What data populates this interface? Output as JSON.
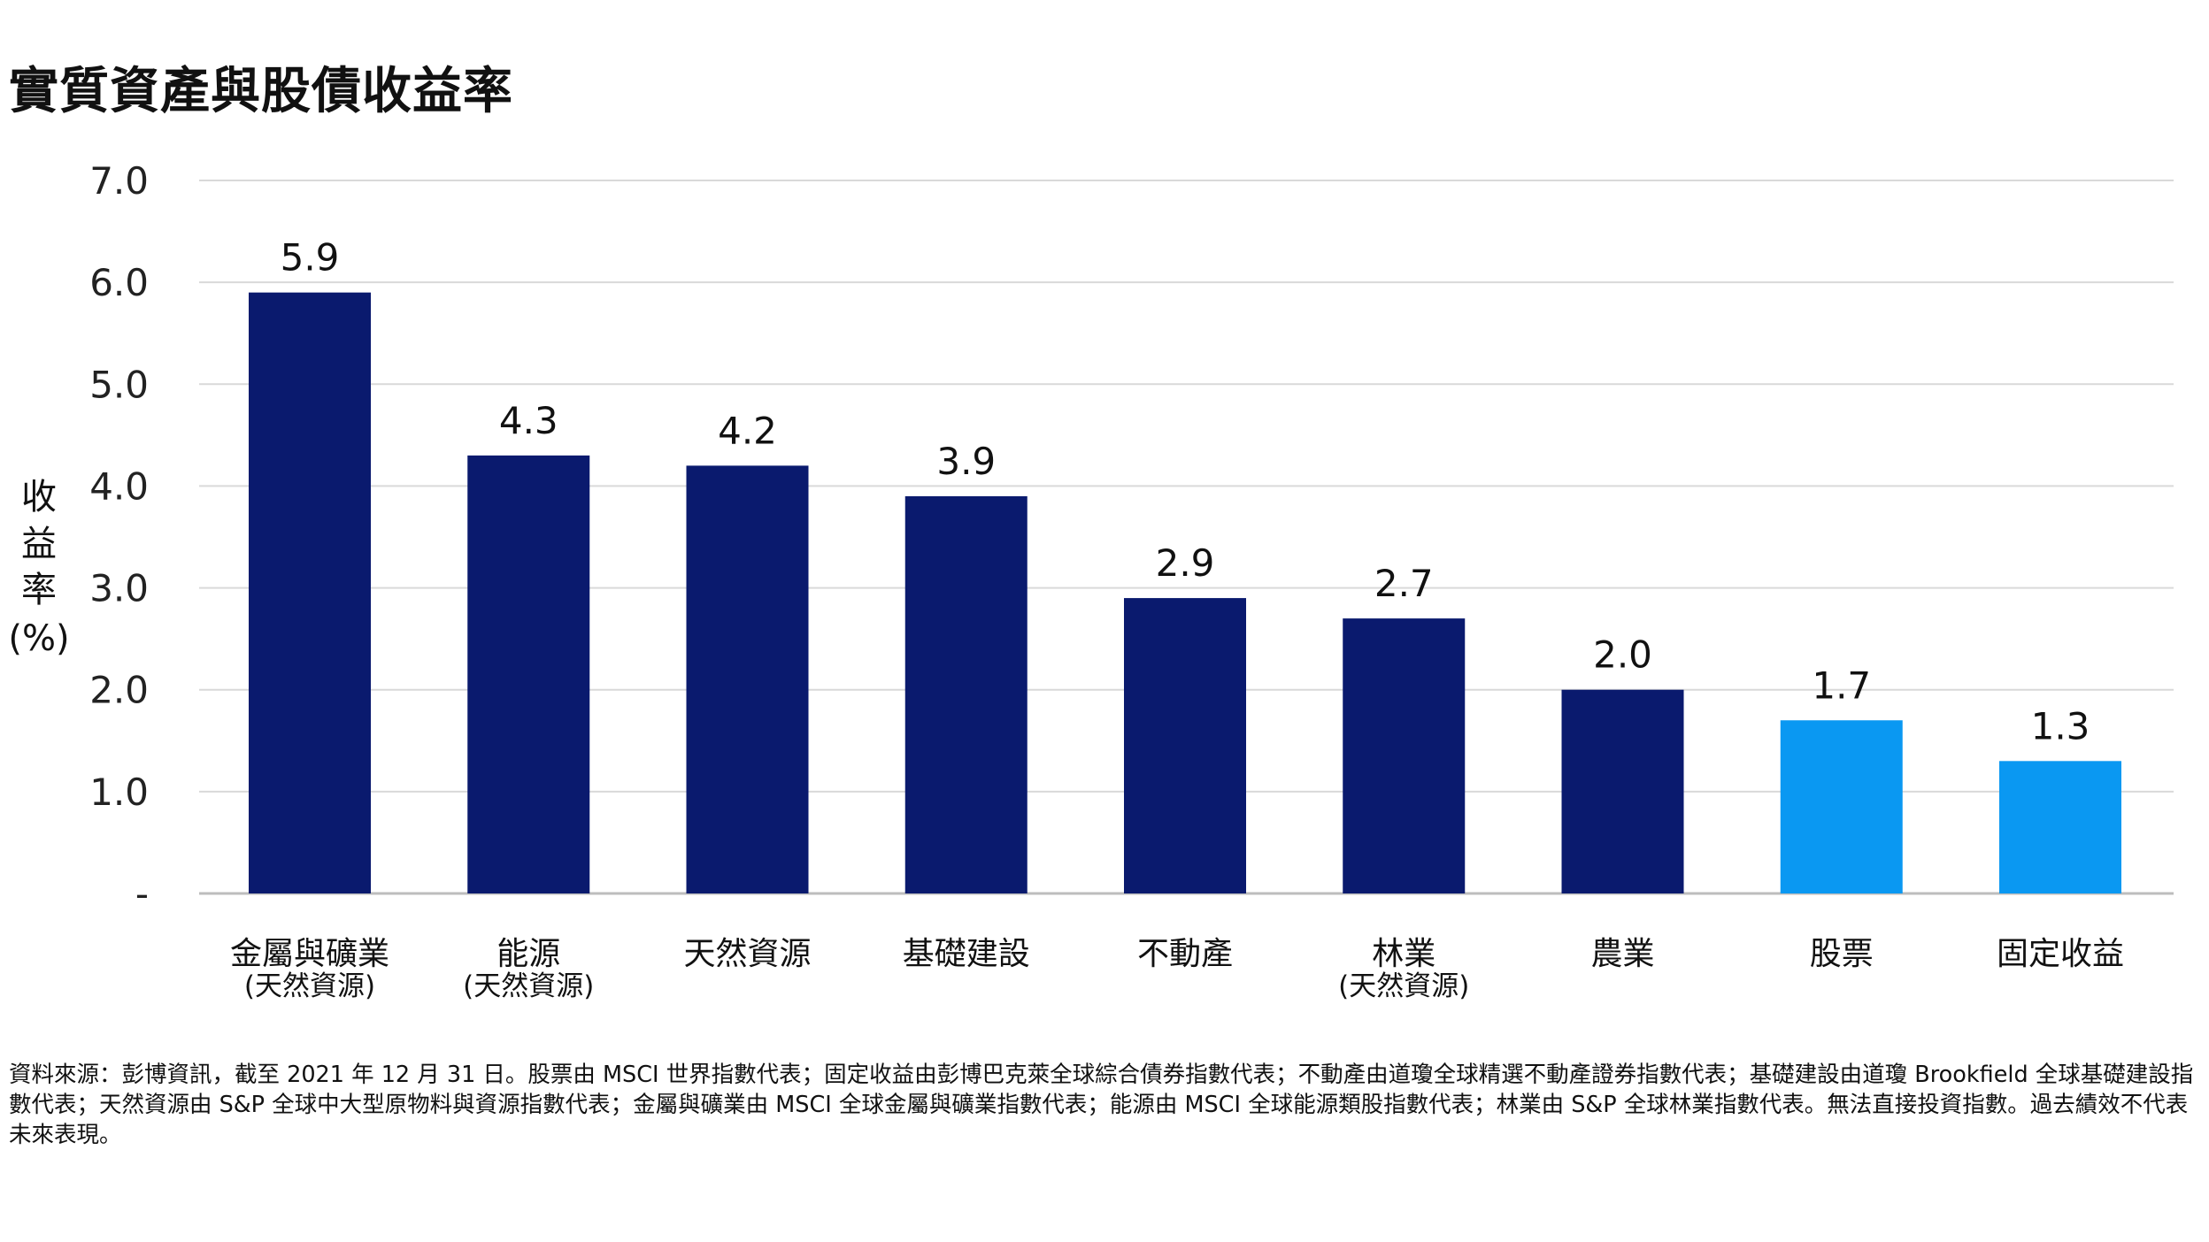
{
  "chart_data": {
    "type": "bar",
    "title": "實質資產與股債收益率",
    "ylabel_chars": [
      "收",
      "益",
      "率",
      "(%)"
    ],
    "ylim": [
      0,
      7
    ],
    "y_ticks": [
      {
        "value": 0,
        "label": "-"
      },
      {
        "value": 1,
        "label": "1.0"
      },
      {
        "value": 2,
        "label": "2.0"
      },
      {
        "value": 3,
        "label": "3.0"
      },
      {
        "value": 4,
        "label": "4.0"
      },
      {
        "value": 5,
        "label": "5.0"
      },
      {
        "value": 6,
        "label": "6.0"
      },
      {
        "value": 7,
        "label": "7.0"
      }
    ],
    "grid": true,
    "categories": [
      {
        "label": "金屬與礦業",
        "sublabel": "(天然資源)",
        "value": 5.9,
        "value_label": "5.9",
        "color": "#0a1a6e"
      },
      {
        "label": "能源",
        "sublabel": "(天然資源)",
        "value": 4.3,
        "value_label": "4.3",
        "color": "#0a1a6e"
      },
      {
        "label": "天然資源",
        "sublabel": "",
        "value": 4.2,
        "value_label": "4.2",
        "color": "#0a1a6e"
      },
      {
        "label": "基礎建設",
        "sublabel": "",
        "value": 3.9,
        "value_label": "3.9",
        "color": "#0a1a6e"
      },
      {
        "label": "不動產",
        "sublabel": "",
        "value": 2.9,
        "value_label": "2.9",
        "color": "#0a1a6e"
      },
      {
        "label": "林業",
        "sublabel": "(天然資源)",
        "value": 2.7,
        "value_label": "2.7",
        "color": "#0a1a6e"
      },
      {
        "label": "農業",
        "sublabel": "",
        "value": 2.0,
        "value_label": "2.0",
        "color": "#0a1a6e"
      },
      {
        "label": "股票",
        "sublabel": "",
        "value": 1.7,
        "value_label": "1.7",
        "color": "#0a98f2"
      },
      {
        "label": "固定收益",
        "sublabel": "",
        "value": 1.3,
        "value_label": "1.3",
        "color": "#0a98f2"
      }
    ],
    "source_note": "資料來源：彭博資訊，截至 2021 年 12 月 31 日。股票由 MSCI 世界指數代表；固定收益由彭博巴克萊全球綜合債券指數代表；不動產由道瓊全球精選不動產證券指數代表；基礎建設由道瓊 Brookfield 全球基礎建設指數代表；天然資源由 S&P 全球中大型原物料與資源指數代表；金屬與礦業由 MSCI 全球金屬與礦業指數代表；能源由 MSCI 全球能源類股指數代表；林業由 S&P 全球林業指數代表。無法直接投資指數。過去績效不代表未來表現。"
  }
}
